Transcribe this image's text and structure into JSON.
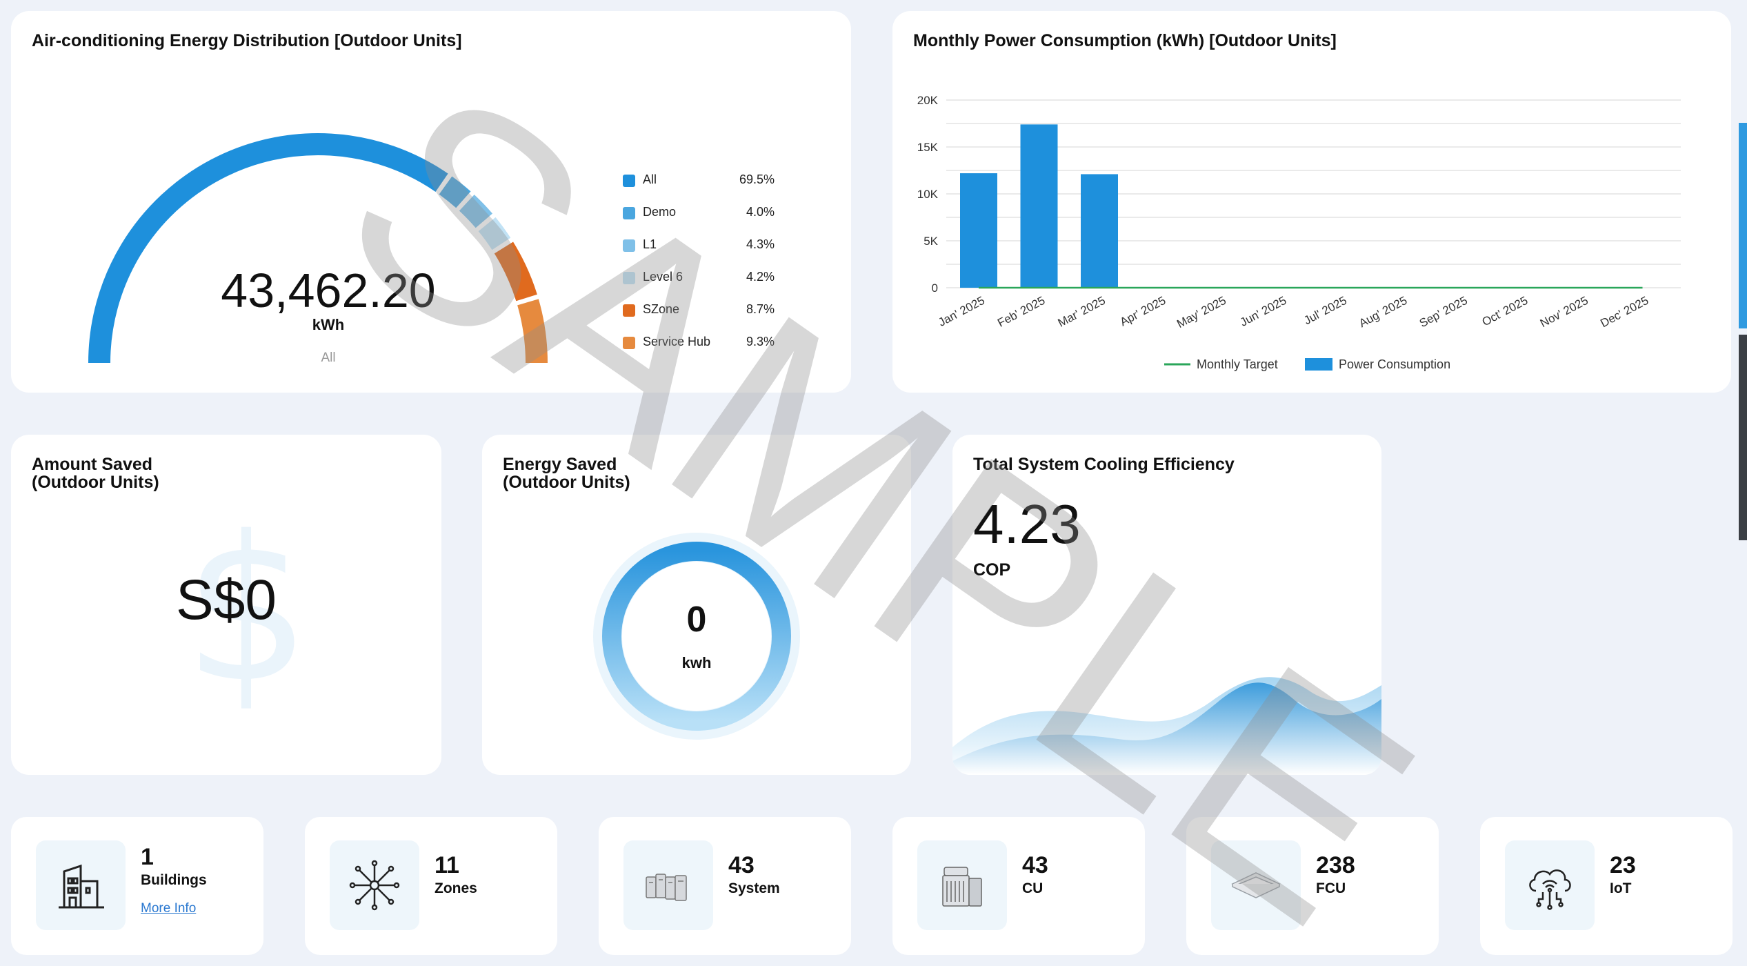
{
  "distribution": {
    "title": "Air-conditioning Energy Distribution [Outdoor Units]",
    "value": "43,462.20",
    "unit": "kWh",
    "selected": "All",
    "legend": [
      {
        "label": "All",
        "pct": "69.5%",
        "color": "#1e90dc"
      },
      {
        "label": "Demo",
        "pct": "4.0%",
        "color": "#4aa6df"
      },
      {
        "label": "L1",
        "pct": "4.3%",
        "color": "#7fc0e8"
      },
      {
        "label": "Level 6",
        "pct": "4.2%",
        "color": "#c1e2f5"
      },
      {
        "label": "SZone",
        "pct": "8.7%",
        "color": "#e06a1e"
      },
      {
        "label": "Service Hub",
        "pct": "9.3%",
        "color": "#e68a3e"
      }
    ]
  },
  "chart_data": {
    "type": "bar",
    "title": "Monthly Power Consumption (kWh) [Outdoor Units]",
    "categories": [
      "Jan' 2025",
      "Feb' 2025",
      "Mar' 2025",
      "Apr' 2025",
      "May' 2025",
      "Jun' 2025",
      "Jul' 2025",
      "Aug' 2025",
      "Sep' 2025",
      "Oct' 2025",
      "Nov' 2025",
      "Dec' 2025"
    ],
    "series": [
      {
        "name": "Power Consumption",
        "type": "bar",
        "color": "#1e90dc",
        "values": [
          12200,
          17400,
          12100,
          0,
          0,
          0,
          0,
          0,
          0,
          0,
          0,
          0
        ]
      },
      {
        "name": "Monthly Target",
        "type": "line",
        "color": "#2aa65a",
        "values": [
          0,
          0,
          0,
          0,
          0,
          0,
          0,
          0,
          0,
          0,
          0,
          0
        ]
      }
    ],
    "yticks": [
      "0",
      "5K",
      "10K",
      "15K",
      "20K"
    ],
    "ylim": [
      0,
      20000
    ],
    "grid": true,
    "legend_position": "bottom"
  },
  "amount_saved": {
    "title_line1": "Amount Saved",
    "title_line2": "(Outdoor Units)",
    "value": "S$0",
    "bg_glyph": "$"
  },
  "energy_saved": {
    "title_line1": "Energy Saved",
    "title_line2": "(Outdoor Units)",
    "value": "0",
    "unit": "kwh"
  },
  "cooling": {
    "title": "Total System Cooling Efficiency",
    "value": "4.23",
    "unit": "COP"
  },
  "stats": [
    {
      "num": "1",
      "label": "Buildings",
      "link": "More Info",
      "icon": "building-icon"
    },
    {
      "num": "11",
      "label": "Zones",
      "icon": "network-hub-icon"
    },
    {
      "num": "43",
      "label": "System",
      "icon": "server-units-icon"
    },
    {
      "num": "43",
      "label": "CU",
      "icon": "condenser-unit-icon"
    },
    {
      "num": "238",
      "label": "FCU",
      "icon": "ceiling-cassette-icon"
    },
    {
      "num": "23",
      "label": "IoT",
      "icon": "cloud-iot-icon"
    }
  ],
  "watermark": "SAMPLE"
}
